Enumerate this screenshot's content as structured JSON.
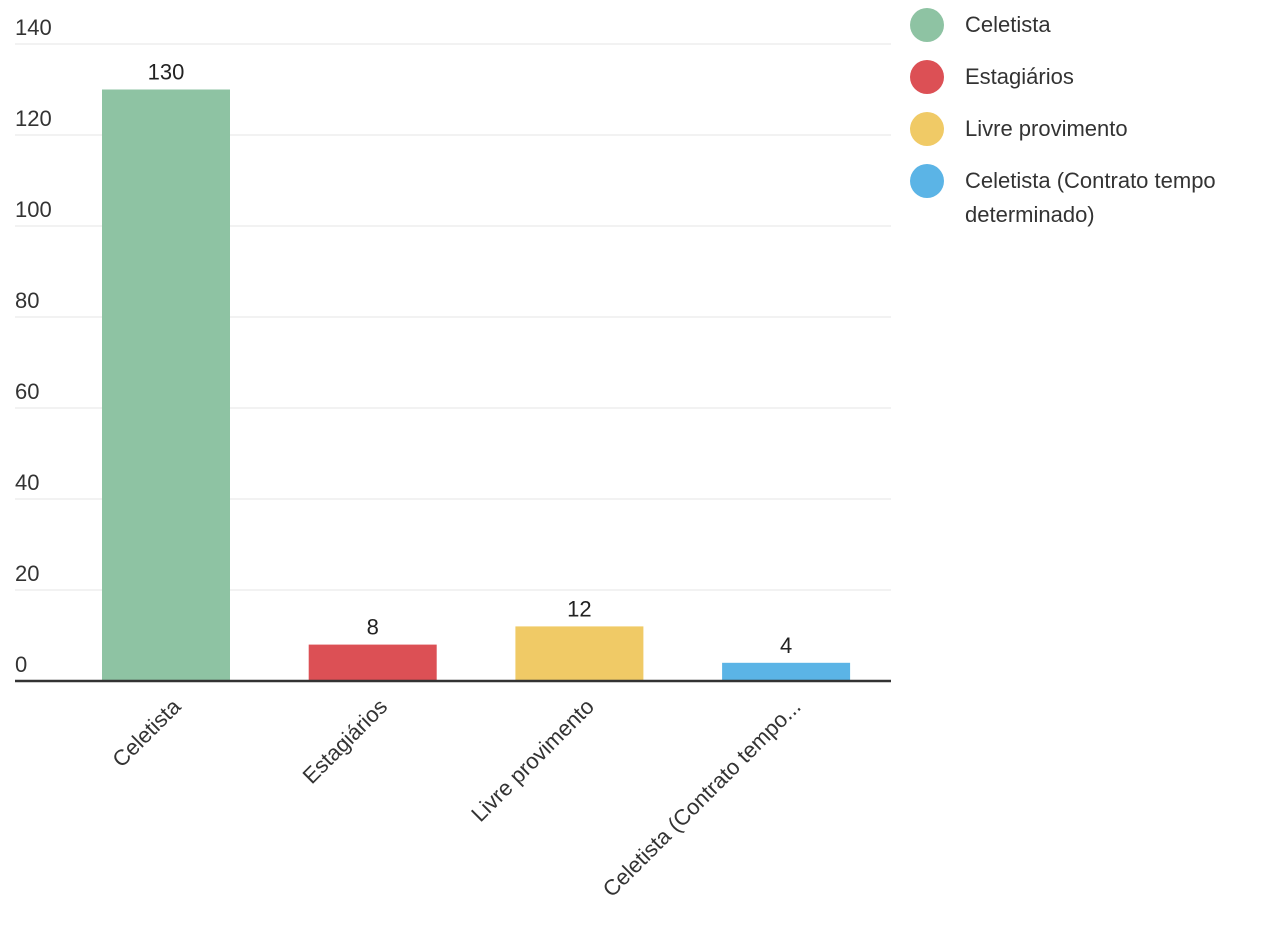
{
  "chart_data": {
    "type": "bar",
    "categories": [
      "Celetista",
      "Estagiários",
      "Livre provimento",
      "Celetista (Contrato tempo determinado)"
    ],
    "category_tick_labels": [
      "Celetista",
      "Estagiários",
      "Livre provimento",
      "Celetista (Contrato tempo..."
    ],
    "values": [
      130,
      8,
      12,
      4
    ],
    "colors": [
      "#8ec3a3",
      "#dc5055",
      "#f0ca66",
      "#5bb4e6"
    ],
    "data_labels": [
      "130",
      "8",
      "12",
      "4"
    ],
    "y_ticks": [
      "0",
      "20",
      "40",
      "60",
      "80",
      "100",
      "120",
      "140"
    ],
    "ylim": [
      0,
      140
    ],
    "grid": true,
    "legend_position": "right",
    "legend": [
      {
        "label": "Celetista",
        "color": "#8ec3a3"
      },
      {
        "label": "Estagiários",
        "color": "#dc5055"
      },
      {
        "label": "Livre provimento",
        "color": "#f0ca66"
      },
      {
        "label": "Celetista (Contrato tempo determinado)",
        "color": "#5bb4e6"
      }
    ]
  }
}
